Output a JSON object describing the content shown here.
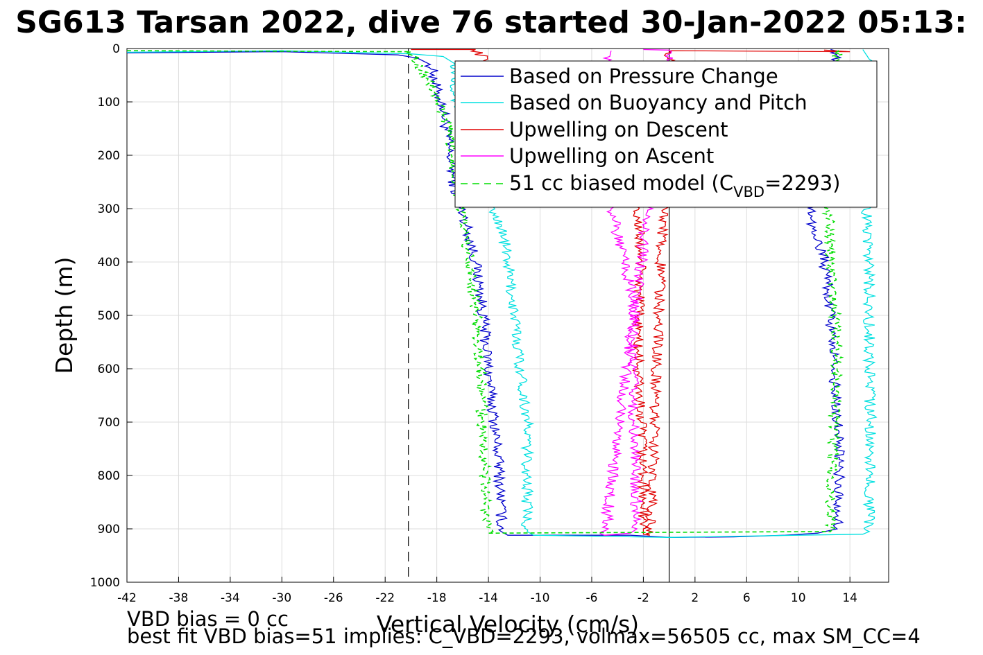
{
  "chart_data": {
    "type": "line",
    "title": "SG613 Tarsan 2022, dive 76 started 30-Jan-2022 05:13:",
    "xlabel": "Vertical Velocity (cm/s)",
    "ylabel": "Depth (m)",
    "xlim": [
      -42,
      17
    ],
    "ylim": [
      0,
      1000
    ],
    "y_reversed": true,
    "grid": true,
    "legend_placement": "top-right",
    "x_ticks": [
      "-42",
      "-38",
      "-34",
      "-30",
      "-26",
      "-22",
      "-18",
      "-14",
      "-10",
      "-6",
      "-2",
      "2",
      "6",
      "10",
      "14"
    ],
    "y_ticks": [
      "0",
      "100",
      "200",
      "300",
      "400",
      "500",
      "600",
      "700",
      "800",
      "900",
      "1000"
    ],
    "reference_lines": [
      {
        "x": -20.2,
        "style": "dashed",
        "color": "#000000"
      },
      {
        "x": 0,
        "style": "solid",
        "color": "#000000"
      }
    ],
    "series": [
      {
        "name": "Based on Pressure Change",
        "color": "#0000cc",
        "style": "solid",
        "points": [
          [
            -42,
            8
          ],
          [
            -30,
            6
          ],
          [
            -21,
            12
          ],
          [
            -19.5,
            18
          ],
          [
            -18.5,
            30
          ],
          [
            -18.2,
            50
          ],
          [
            -18,
            80
          ],
          [
            -17.5,
            110
          ],
          [
            -17,
            200
          ],
          [
            -16.5,
            280
          ],
          [
            -15.8,
            320
          ],
          [
            -15,
            400
          ],
          [
            -14.5,
            480
          ],
          [
            -14.2,
            550
          ],
          [
            -13.8,
            650
          ],
          [
            -13.3,
            750
          ],
          [
            -13,
            850
          ],
          [
            -13,
            905
          ],
          [
            -12.5,
            912
          ],
          [
            -3,
            912
          ],
          [
            0,
            916
          ],
          [
            5,
            915
          ],
          [
            9,
            912
          ],
          [
            11.5,
            908
          ],
          [
            13,
            900
          ],
          [
            13.2,
            800
          ],
          [
            13,
            700
          ],
          [
            12.8,
            600
          ],
          [
            12.5,
            500
          ],
          [
            12,
            400
          ],
          [
            11,
            320
          ],
          [
            11,
            290
          ],
          [
            12.5,
            60
          ],
          [
            13,
            5
          ],
          [
            12.5,
            2
          ]
        ]
      },
      {
        "name": "Based on Buoyancy and Pitch",
        "color": "#00e0e0",
        "style": "solid",
        "points": [
          [
            -42,
            7
          ],
          [
            -30,
            4
          ],
          [
            -20,
            10
          ],
          [
            -17.5,
            15
          ],
          [
            -16.5,
            30
          ],
          [
            -16.5,
            100
          ],
          [
            -15.5,
            200
          ],
          [
            -14.5,
            280
          ],
          [
            -13,
            330
          ],
          [
            -12.5,
            400
          ],
          [
            -12,
            500
          ],
          [
            -11.5,
            600
          ],
          [
            -11,
            700
          ],
          [
            -11,
            800
          ],
          [
            -11,
            905
          ],
          [
            -10.5,
            912
          ],
          [
            0,
            916
          ],
          [
            5,
            914
          ],
          [
            10,
            912
          ],
          [
            15,
            910
          ],
          [
            15.5,
            905
          ],
          [
            15.5,
            800
          ],
          [
            15.6,
            700
          ],
          [
            15.5,
            600
          ],
          [
            15.5,
            500
          ],
          [
            15.5,
            400
          ],
          [
            15.3,
            320
          ],
          [
            15.5,
            200
          ],
          [
            15.5,
            100
          ],
          [
            15.5,
            20
          ],
          [
            15,
            2
          ]
        ]
      },
      {
        "name": "Upwelling on Descent",
        "color": "#e00000",
        "style": "solid",
        "points": [
          [
            -20,
            2
          ],
          [
            -15,
            2
          ],
          [
            -2.5,
            290
          ],
          [
            -2.2,
            400
          ],
          [
            -2.4,
            500
          ],
          [
            -2.4,
            600
          ],
          [
            -2.2,
            700
          ],
          [
            -2,
            800
          ],
          [
            -2,
            900
          ],
          [
            -2,
            910
          ],
          [
            -1.5,
            912
          ],
          [
            0,
            4
          ],
          [
            14,
            6
          ],
          [
            12,
            3
          ]
        ]
      },
      {
        "name": "Upwelling on Ascent",
        "color": "#ff00ff",
        "style": "solid",
        "points": [
          [
            -4.5,
            4
          ],
          [
            -4.6,
            15
          ],
          [
            -4.5,
            300
          ],
          [
            -4,
            350
          ],
          [
            -3.5,
            400
          ],
          [
            -3,
            450
          ],
          [
            -2.8,
            500
          ],
          [
            -2.8,
            600
          ],
          [
            -2.8,
            700
          ],
          [
            -2.6,
            800
          ],
          [
            -2.5,
            900
          ],
          [
            -3,
            908
          ],
          [
            -5,
            912
          ],
          [
            0,
            3
          ],
          [
            -2,
            2
          ]
        ]
      },
      {
        "name": "51 cc biased model (C_VBD=2293)",
        "color": "#00dd00",
        "style": "dashed",
        "points": [
          [
            -42,
            4
          ],
          [
            -20,
            6
          ],
          [
            -18.2,
            80
          ],
          [
            -17,
            160
          ],
          [
            -16.5,
            260
          ],
          [
            -16,
            320
          ],
          [
            -15.5,
            400
          ],
          [
            -15,
            480
          ],
          [
            -14.8,
            560
          ],
          [
            -14.5,
            650
          ],
          [
            -14.5,
            700
          ],
          [
            -14.3,
            780
          ],
          [
            -14.2,
            850
          ],
          [
            -14,
            908
          ],
          [
            12.5,
            905
          ],
          [
            12.5,
            840
          ],
          [
            12.8,
            700
          ],
          [
            13,
            600
          ],
          [
            12.8,
            500
          ],
          [
            12.5,
            400
          ],
          [
            12.3,
            300
          ],
          [
            12.5,
            200
          ],
          [
            13,
            60
          ],
          [
            13,
            2
          ]
        ]
      }
    ]
  },
  "legend": {
    "items": [
      {
        "label": "Based on Pressure Change",
        "color": "#0000cc",
        "dashed": false
      },
      {
        "label": "Based on Buoyancy and Pitch",
        "color": "#00e0e0",
        "dashed": false
      },
      {
        "label": "Upwelling on Descent",
        "color": "#e00000",
        "dashed": false
      },
      {
        "label": "Upwelling on Ascent",
        "color": "#ff00ff",
        "dashed": false
      },
      {
        "label_prefix": "51 cc biased model (C",
        "label_sub": "VBD",
        "label_suffix": "=2293)",
        "color": "#00dd00",
        "dashed": true
      }
    ]
  },
  "notes": {
    "vbd_bias": "VBD bias = 0 cc",
    "best_fit": "best fit VBD bias=51 implies: C_VBD=2293, volmax=56505 cc, max SM_CC=4"
  }
}
